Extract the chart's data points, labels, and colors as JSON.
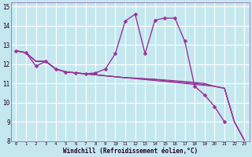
{
  "bg_color": "#c5e8ef",
  "grid_color": "#aad4dc",
  "line_color": "#993399",
  "marker_color": "#993399",
  "xlabel": "Windchill (Refroidissement éolien,°C)",
  "xlim": [
    -0.5,
    23.5
  ],
  "ylim": [
    8,
    15.2
  ],
  "yticks": [
    8,
    9,
    10,
    11,
    12,
    13,
    14,
    15
  ],
  "xticks": [
    0,
    1,
    2,
    3,
    4,
    5,
    6,
    7,
    8,
    9,
    10,
    11,
    12,
    13,
    14,
    15,
    16,
    17,
    18,
    19,
    20,
    21,
    22,
    23
  ],
  "series": [
    {
      "x": [
        0,
        1,
        2,
        3,
        4,
        5,
        6,
        7,
        8,
        9,
        10,
        11,
        12,
        13,
        14,
        15,
        16,
        17,
        18,
        19,
        20,
        21
      ],
      "y": [
        12.7,
        12.6,
        11.9,
        12.15,
        11.75,
        11.6,
        11.55,
        11.5,
        11.55,
        11.75,
        12.55,
        14.25,
        14.6,
        12.55,
        14.3,
        14.4,
        14.4,
        13.2,
        10.85,
        10.4,
        9.8,
        9.0
      ],
      "has_marker": true,
      "linewidth": 1.0,
      "markersize": 2.5
    },
    {
      "x": [
        0,
        1,
        2,
        3,
        4,
        5,
        6,
        7,
        8,
        9,
        10,
        11,
        12,
        13,
        14,
        15,
        16,
        17,
        18,
        19,
        20,
        21,
        22,
        23
      ],
      "y": [
        12.7,
        12.6,
        12.15,
        12.15,
        11.75,
        11.6,
        11.55,
        11.5,
        11.45,
        11.4,
        11.35,
        11.3,
        11.25,
        11.2,
        11.15,
        11.1,
        11.05,
        11.0,
        10.95,
        10.9,
        10.85,
        10.75,
        9.0,
        8.05
      ],
      "has_marker": false,
      "linewidth": 0.9
    },
    {
      "x": [
        0,
        1,
        2,
        3,
        4,
        5,
        6,
        7,
        8,
        9,
        10,
        11,
        12,
        13,
        14,
        15,
        16,
        17,
        18,
        19,
        20,
        21,
        22,
        23
      ],
      "y": [
        12.7,
        12.6,
        12.15,
        12.15,
        11.75,
        11.6,
        11.55,
        11.5,
        11.45,
        11.4,
        11.35,
        11.3,
        11.27,
        11.23,
        11.2,
        11.15,
        11.1,
        11.05,
        11.0,
        10.95,
        10.85,
        10.75,
        9.0,
        8.05
      ],
      "has_marker": false,
      "linewidth": 0.9
    },
    {
      "x": [
        0,
        1,
        2,
        3,
        4,
        5,
        6,
        7,
        8,
        9,
        10,
        11,
        12,
        13,
        14,
        15,
        16,
        17,
        18,
        19,
        20,
        21,
        22,
        23
      ],
      "y": [
        12.7,
        12.6,
        12.15,
        12.15,
        11.75,
        11.6,
        11.55,
        11.5,
        11.45,
        11.4,
        11.35,
        11.3,
        11.28,
        11.25,
        11.22,
        11.18,
        11.14,
        11.1,
        11.05,
        11.0,
        10.85,
        10.75,
        9.0,
        8.05
      ],
      "has_marker": false,
      "linewidth": 0.9
    }
  ]
}
